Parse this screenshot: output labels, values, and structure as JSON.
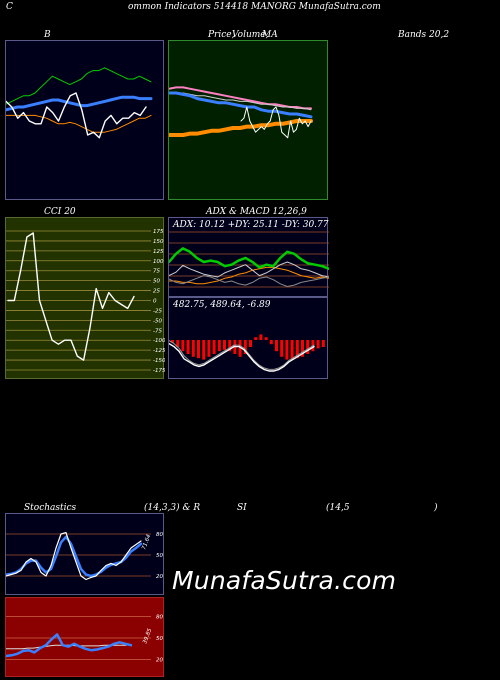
{
  "header": {
    "c": "C",
    "line": "ommon  Indicators 514418  MANORG MunafaSutra.com"
  },
  "labels": {
    "b": "B",
    "price_a": "Price,",
    "price_b": "Volume,",
    "price_c": "MA",
    "bands": "Bands 20,2",
    "cci": "CCI 20",
    "adx": "ADX  & MACD 12,26,9",
    "adx_values": "ADX: 10.12  +DY: 25.11 -DY: 30.77",
    "macd_values": "482.75,  489.64,  -6.89",
    "stoch": "Stochastics",
    "stoch_params": "(14,3,3) & R",
    "si": "SI",
    "rsi_params": "(14,5",
    "rsi_close": ")",
    "stoch_value": "71.64",
    "rsi_value": "39.85",
    "watermark": "MunafaSutra.com"
  },
  "colors": {
    "background": "#000000",
    "bollinger_bg": "#00001a",
    "price_bg": "#002000",
    "cci_bg": "#223300",
    "adx_bg": "#00001a",
    "stoch_bg": "#00001a",
    "rsi_bg": "#8b0000",
    "white": "#ffffff",
    "blue": "#3a7fff",
    "orange": "#ff8c00",
    "green": "#00cc00",
    "pink": "#ff80c0",
    "red": "#ff0000"
  },
  "chart_data": [
    {
      "type": "line",
      "name": "bollinger",
      "series": [
        {
          "values": [
            62,
            64,
            66,
            68,
            68,
            70,
            74,
            78,
            82,
            80,
            78,
            76,
            78,
            80,
            84,
            86,
            86,
            88,
            86,
            84,
            82,
            80,
            80,
            82,
            80,
            78
          ]
        },
        {
          "values": [
            58,
            59,
            60,
            60,
            61,
            62,
            63,
            64,
            65,
            65,
            64,
            63,
            62,
            61,
            61,
            62,
            63,
            64,
            65,
            66,
            67,
            67,
            67,
            66,
            66,
            66
          ]
        },
        {
          "values": [
            54,
            54,
            54,
            54,
            54,
            54,
            53,
            52,
            50,
            48,
            48,
            49,
            48,
            46,
            44,
            42,
            42,
            42,
            43,
            44,
            46,
            48,
            50,
            52,
            52,
            54
          ]
        },
        {
          "values": [
            64,
            60,
            52,
            56,
            50,
            48,
            48,
            60,
            56,
            50,
            60,
            68,
            70,
            58,
            40,
            42,
            38,
            50,
            54,
            48,
            52,
            52,
            56,
            54,
            60
          ]
        }
      ]
    },
    {
      "type": "line",
      "name": "price_volume_ma",
      "series": [
        {
          "values": [
            73,
            74,
            74,
            73,
            72,
            71,
            70,
            69,
            68,
            67,
            66,
            65,
            64,
            63,
            62,
            62,
            61,
            60,
            60,
            59,
            59
          ]
        },
        {
          "values": [
            70,
            70,
            70,
            69,
            68,
            68,
            67,
            66,
            65,
            65,
            64,
            64,
            63,
            62,
            62,
            61,
            60,
            60,
            59,
            59,
            58
          ]
        },
        {
          "values": [
            70,
            70,
            69,
            68,
            66,
            65,
            64,
            63,
            63,
            62,
            61,
            60,
            60,
            58,
            57,
            57,
            56,
            55,
            55,
            54,
            53
          ]
        },
        {
          "values": [
            40,
            40,
            40,
            41,
            41,
            42,
            43,
            43,
            44,
            45,
            45,
            46,
            46,
            47,
            47,
            48,
            48,
            49,
            50,
            50,
            50
          ]
        },
        {
          "values": [
            50,
            52,
            60,
            50,
            46,
            42,
            44,
            46,
            44,
            48,
            50,
            58,
            60,
            54,
            42,
            40,
            38,
            50,
            42,
            44,
            52,
            48,
            50,
            46,
            50
          ]
        }
      ]
    },
    {
      "type": "line",
      "name": "cci",
      "yticks": [
        175,
        150,
        125,
        100,
        75,
        50,
        25,
        0,
        -25,
        -50,
        -75,
        -100,
        -125,
        -150,
        -175
      ],
      "series": [
        {
          "values": [
            0,
            0,
            75,
            160,
            170,
            0,
            -50,
            -100,
            -110,
            -100,
            -100,
            -140,
            -150,
            -70,
            30,
            -20,
            20,
            0,
            -10,
            -20,
            10
          ]
        }
      ]
    },
    {
      "type": "line",
      "name": "adx",
      "series": [
        {
          "values": [
            50,
            62,
            70,
            65,
            56,
            50,
            52,
            50,
            44,
            46,
            52,
            56,
            50,
            42,
            46,
            44,
            56,
            65,
            62,
            54,
            48,
            46,
            44,
            40
          ]
        },
        {
          "values": [
            30,
            35,
            45,
            40,
            36,
            32,
            30,
            28,
            34,
            38,
            42,
            46,
            38,
            30,
            34,
            40,
            46,
            50,
            46,
            40,
            38,
            34,
            30,
            28
          ]
        },
        {
          "values": [
            25,
            20,
            18,
            22,
            26,
            30,
            28,
            24,
            20,
            22,
            18,
            16,
            20,
            26,
            28,
            24,
            18,
            14,
            16,
            20,
            22,
            24,
            26,
            28
          ]
        },
        {
          "values": [
            22,
            22,
            20,
            20,
            18,
            18,
            20,
            22,
            26,
            28,
            32,
            34,
            38,
            40,
            42,
            42,
            40,
            38,
            34,
            30,
            28,
            26,
            28,
            26
          ]
        }
      ]
    },
    {
      "type": "bar",
      "name": "macd",
      "series": [
        {
          "values": [
            -2,
            -5,
            -8,
            -10,
            -12,
            -13,
            -14,
            -12,
            -10,
            -8,
            -7,
            -8,
            -10,
            -12,
            -10,
            -5,
            2,
            4,
            2,
            -3,
            -8,
            -12,
            -14,
            -14,
            -13,
            -12,
            -10,
            -8,
            -6,
            -5
          ]
        },
        {
          "values": [
            20,
            18,
            15,
            10,
            8,
            6,
            5,
            6,
            8,
            10,
            12,
            14,
            16,
            18,
            18,
            16,
            12,
            8,
            5,
            3,
            2,
            2,
            3,
            5,
            8,
            10,
            12,
            14,
            16,
            18
          ]
        },
        {
          "values": [
            22,
            20,
            17,
            12,
            9,
            7,
            6,
            7,
            9,
            11,
            13,
            15,
            17,
            19,
            19,
            17,
            13,
            9,
            6,
            4,
            3,
            3,
            4,
            6,
            9,
            11,
            13,
            15,
            17,
            19
          ]
        }
      ]
    },
    {
      "type": "line",
      "name": "stochastics",
      "yticks": [
        80,
        50,
        20
      ],
      "series": [
        {
          "values": [
            20,
            22,
            24,
            28,
            40,
            45,
            40,
            25,
            20,
            35,
            60,
            80,
            82,
            60,
            40,
            20,
            15,
            18,
            20,
            28,
            35,
            38,
            35,
            40,
            50,
            60,
            65,
            70
          ]
        },
        {
          "values": [
            22,
            23,
            25,
            30,
            38,
            42,
            42,
            32,
            25,
            30,
            48,
            68,
            76,
            66,
            48,
            30,
            22,
            20,
            22,
            26,
            32,
            36,
            38,
            40,
            46,
            55,
            60,
            66
          ]
        },
        {
          "values": [
            72,
            73,
            74
          ]
        }
      ]
    },
    {
      "type": "line",
      "name": "rsi",
      "yticks": [
        80,
        50,
        20
      ],
      "series": [
        {
          "values": [
            25,
            26,
            28,
            32,
            33,
            30,
            36,
            40,
            48,
            55,
            40,
            38,
            42,
            38,
            35,
            33,
            34,
            36,
            38,
            42,
            44,
            42,
            40
          ]
        },
        {
          "values": [
            35,
            35,
            35,
            35,
            36,
            36,
            37,
            38,
            39,
            40,
            40,
            40,
            40,
            39,
            39,
            39,
            39,
            39,
            40,
            40,
            40,
            40,
            40
          ]
        }
      ]
    }
  ]
}
